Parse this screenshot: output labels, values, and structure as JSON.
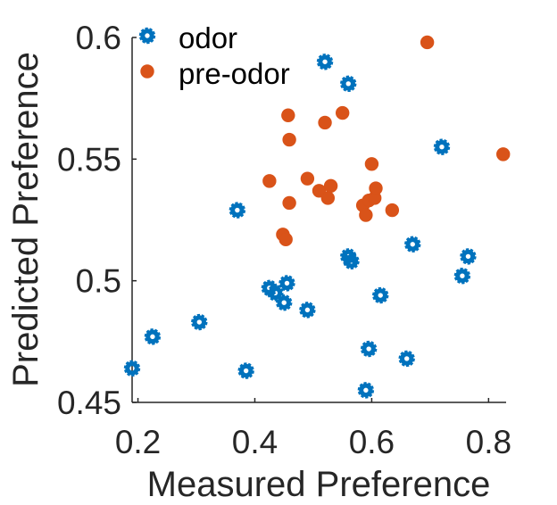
{
  "chart_data": {
    "type": "scatter",
    "xlabel": "Measured Preference",
    "ylabel": "Predicted Preference",
    "xlim": [
      0.19,
      0.83
    ],
    "ylim": [
      0.45,
      0.6
    ],
    "xticks": [
      "0.2",
      "0.4",
      "0.6",
      "0.8"
    ],
    "xtick_values": [
      0.2,
      0.4,
      0.6,
      0.8
    ],
    "yticks": [
      "0.45",
      "0.5",
      "0.55",
      "0.6"
    ],
    "ytick_values": [
      0.45,
      0.5,
      0.55,
      0.6
    ],
    "grid": false,
    "legend_position": "top-left",
    "series": [
      {
        "name": "odor",
        "color": "#0072BD",
        "marker": "ring",
        "points": [
          [
            0.19,
            0.464
          ],
          [
            0.225,
            0.477
          ],
          [
            0.305,
            0.483
          ],
          [
            0.37,
            0.529
          ],
          [
            0.385,
            0.463
          ],
          [
            0.425,
            0.497
          ],
          [
            0.435,
            0.495
          ],
          [
            0.45,
            0.491
          ],
          [
            0.455,
            0.499
          ],
          [
            0.49,
            0.488
          ],
          [
            0.52,
            0.59
          ],
          [
            0.56,
            0.581
          ],
          [
            0.56,
            0.51
          ],
          [
            0.565,
            0.508
          ],
          [
            0.59,
            0.455
          ],
          [
            0.595,
            0.472
          ],
          [
            0.615,
            0.494
          ],
          [
            0.66,
            0.468
          ],
          [
            0.67,
            0.515
          ],
          [
            0.72,
            0.555
          ],
          [
            0.755,
            0.502
          ],
          [
            0.765,
            0.51
          ]
        ]
      },
      {
        "name": "pre-odor",
        "color": "#D95319",
        "marker": "filled",
        "points": [
          [
            0.425,
            0.541
          ],
          [
            0.448,
            0.519
          ],
          [
            0.453,
            0.517
          ],
          [
            0.457,
            0.568
          ],
          [
            0.459,
            0.558
          ],
          [
            0.459,
            0.532
          ],
          [
            0.49,
            0.542
          ],
          [
            0.51,
            0.537
          ],
          [
            0.52,
            0.565
          ],
          [
            0.525,
            0.534
          ],
          [
            0.53,
            0.539
          ],
          [
            0.55,
            0.569
          ],
          [
            0.585,
            0.531
          ],
          [
            0.59,
            0.527
          ],
          [
            0.595,
            0.533
          ],
          [
            0.6,
            0.548
          ],
          [
            0.605,
            0.534
          ],
          [
            0.607,
            0.538
          ],
          [
            0.635,
            0.529
          ],
          [
            0.695,
            0.598
          ],
          [
            0.825,
            0.552
          ]
        ]
      }
    ]
  }
}
